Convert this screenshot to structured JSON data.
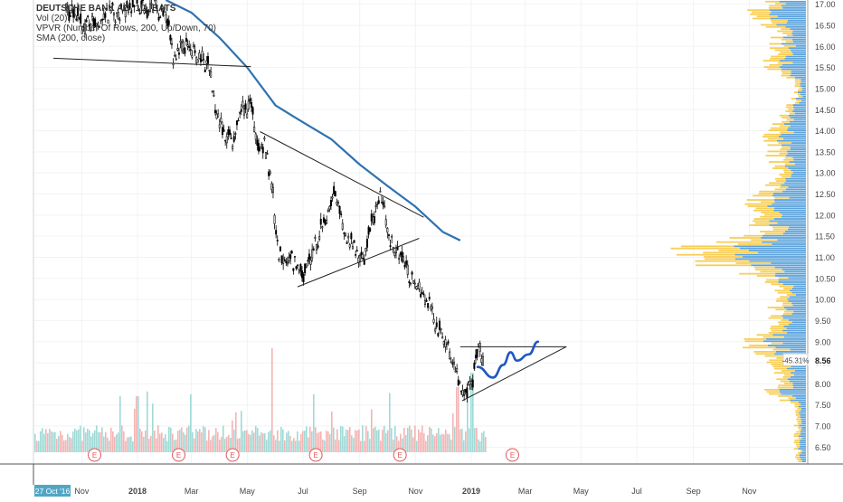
{
  "legend": {
    "symbol": "DEUTSCHE BANK AG, 1D, BATS",
    "volume": "Vol (20)",
    "vpvr": "VPVR (Number Of Rows, 200, Up/Down, 70)",
    "sma": "SMA (200, close)"
  },
  "colors": {
    "candle": "#000000",
    "sma": "#2f72b0",
    "vol_up": "#8fd3cf",
    "vol_down": "#f2a7a7",
    "vpvr_up": "#4a98d6",
    "vpvr_down": "#f6c945",
    "projection": "#1f57c3",
    "earnings": "#e0565b"
  },
  "chart_data": {
    "type": "candlestick",
    "title": "DEUTSCHE BANK AG, 1D, BATS",
    "y_range": [
      6.1,
      17.1
    ],
    "y_ticks": [
      "17.00",
      "16.50",
      "16.00",
      "15.50",
      "15.00",
      "14.50",
      "14.00",
      "13.50",
      "13.00",
      "12.50",
      "12.00",
      "11.50",
      "11.00",
      "10.50",
      "10.00",
      "9.50",
      "9.00",
      "8.50",
      "8.00",
      "7.50",
      "7.00",
      "6.50"
    ],
    "x_ticks": [
      "Nov",
      "2018",
      "Mar",
      "May",
      "Jul",
      "Sep",
      "Nov",
      "2019",
      "Mar",
      "May",
      "Jul",
      "Sep",
      "Nov"
    ],
    "date_badge": "27 Oct '16",
    "last_price": "8.56",
    "change_badge": "-45.31%",
    "earnings_marker": "E",
    "earnings_dates": [
      "2017-11",
      "2018-02",
      "2018-04",
      "2018-07",
      "2018-10",
      "2019-02"
    ],
    "price_path": [
      {
        "date": "2017-10-15",
        "close": 16.9
      },
      {
        "date": "2017-11-05",
        "close": 16.5
      },
      {
        "date": "2017-11-25",
        "close": 16.6
      },
      {
        "date": "2017-12-15",
        "close": 16.9
      },
      {
        "date": "2018-01-05",
        "close": 17.0
      },
      {
        "date": "2018-01-20",
        "close": 16.9
      },
      {
        "date": "2018-02-01",
        "close": 16.8
      },
      {
        "date": "2018-02-10",
        "close": 15.6
      },
      {
        "date": "2018-02-20",
        "close": 16.1
      },
      {
        "date": "2018-03-05",
        "close": 15.8
      },
      {
        "date": "2018-03-20",
        "close": 15.5
      },
      {
        "date": "2018-03-28",
        "close": 14.4
      },
      {
        "date": "2018-04-05",
        "close": 14.0
      },
      {
        "date": "2018-04-15",
        "close": 13.8
      },
      {
        "date": "2018-04-25",
        "close": 14.4
      },
      {
        "date": "2018-05-05",
        "close": 14.6
      },
      {
        "date": "2018-05-12",
        "close": 13.8
      },
      {
        "date": "2018-05-20",
        "close": 13.6
      },
      {
        "date": "2018-05-28",
        "close": 12.7
      },
      {
        "date": "2018-06-03",
        "close": 11.2
      },
      {
        "date": "2018-06-12",
        "close": 11.0
      },
      {
        "date": "2018-06-22",
        "close": 10.9
      },
      {
        "date": "2018-07-03",
        "close": 10.6
      },
      {
        "date": "2018-07-15",
        "close": 11.3
      },
      {
        "date": "2018-07-28",
        "close": 12.1
      },
      {
        "date": "2018-08-05",
        "close": 12.7
      },
      {
        "date": "2018-08-15",
        "close": 11.6
      },
      {
        "date": "2018-08-25",
        "close": 11.2
      },
      {
        "date": "2018-09-05",
        "close": 11.0
      },
      {
        "date": "2018-09-15",
        "close": 11.9
      },
      {
        "date": "2018-09-25",
        "close": 12.4
      },
      {
        "date": "2018-10-05",
        "close": 11.3
      },
      {
        "date": "2018-10-15",
        "close": 11.0
      },
      {
        "date": "2018-10-25",
        "close": 10.5
      },
      {
        "date": "2018-11-05",
        "close": 10.3
      },
      {
        "date": "2018-11-15",
        "close": 9.9
      },
      {
        "date": "2018-11-25",
        "close": 9.4
      },
      {
        "date": "2018-12-05",
        "close": 9.0
      },
      {
        "date": "2018-12-15",
        "close": 8.3
      },
      {
        "date": "2018-12-24",
        "close": 7.6
      },
      {
        "date": "2019-01-03",
        "close": 8.2
      },
      {
        "date": "2019-01-10",
        "close": 8.8
      },
      {
        "date": "2019-01-14",
        "close": 8.56
      }
    ],
    "sma_200": [
      {
        "date": "2018-02-01",
        "value": 17.1
      },
      {
        "date": "2018-03-01",
        "value": 16.8
      },
      {
        "date": "2018-04-01",
        "value": 16.2
      },
      {
        "date": "2018-05-01",
        "value": 15.5
      },
      {
        "date": "2018-06-01",
        "value": 14.6
      },
      {
        "date": "2018-07-01",
        "value": 14.2
      },
      {
        "date": "2018-08-01",
        "value": 13.8
      },
      {
        "date": "2018-09-01",
        "value": 13.2
      },
      {
        "date": "2018-10-01",
        "value": 12.7
      },
      {
        "date": "2018-11-01",
        "value": 12.2
      },
      {
        "date": "2018-12-01",
        "value": 11.6
      },
      {
        "date": "2018-12-20",
        "value": 11.4
      }
    ],
    "trendlines": [
      {
        "from": {
          "date": "2017-10-01",
          "price": 15.72
        },
        "to": {
          "date": "2018-05-05",
          "price": 15.52
        }
      },
      {
        "from": {
          "date": "2018-05-15",
          "price": 13.98
        },
        "to": {
          "date": "2018-11-10",
          "price": 11.95
        }
      },
      {
        "from": {
          "date": "2018-06-25",
          "price": 10.3
        },
        "to": {
          "date": "2018-11-05",
          "price": 11.45
        }
      },
      {
        "from": {
          "date": "2018-12-20",
          "price": 8.88
        },
        "to": {
          "date": "2019-04-15",
          "price": 8.88
        }
      },
      {
        "from": {
          "date": "2018-12-22",
          "price": 7.6
        },
        "to": {
          "date": "2019-04-15",
          "price": 8.88
        }
      }
    ],
    "projection": [
      {
        "date": "2019-01-08",
        "price": 8.4
      },
      {
        "date": "2019-01-25",
        "price": 8.15
      },
      {
        "date": "2019-02-05",
        "price": 8.45
      },
      {
        "date": "2019-02-13",
        "price": 8.75
      },
      {
        "date": "2019-02-20",
        "price": 8.55
      },
      {
        "date": "2019-03-05",
        "price": 8.7
      },
      {
        "date": "2019-03-15",
        "price": 9.0
      }
    ]
  }
}
